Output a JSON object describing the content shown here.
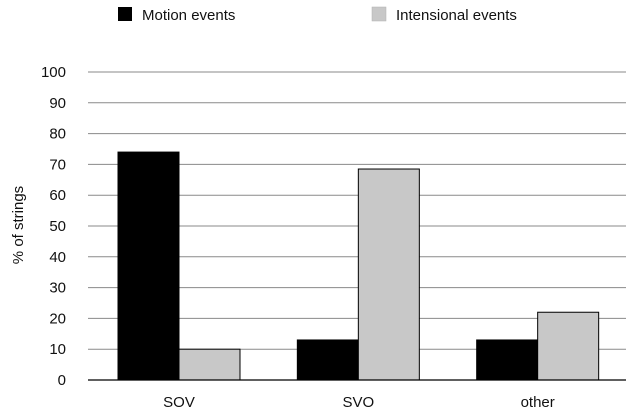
{
  "chart_data": {
    "type": "bar",
    "title": "",
    "xlabel": "",
    "ylabel": "% of strings",
    "categories": [
      "SOV",
      "SVO",
      "other"
    ],
    "yticks": [
      "0",
      "10",
      "20",
      "30",
      "40",
      "50",
      "60",
      "70",
      "80",
      "90",
      "100"
    ],
    "ylim": [
      0,
      100
    ],
    "grid": true,
    "legend_position": "top",
    "series": [
      {
        "name": "Motion events",
        "color": "#000000",
        "values": [
          74,
          13,
          13
        ]
      },
      {
        "name": "Intensional events",
        "color": "#c8c8c8",
        "values": [
          10,
          68.5,
          22
        ]
      }
    ]
  }
}
